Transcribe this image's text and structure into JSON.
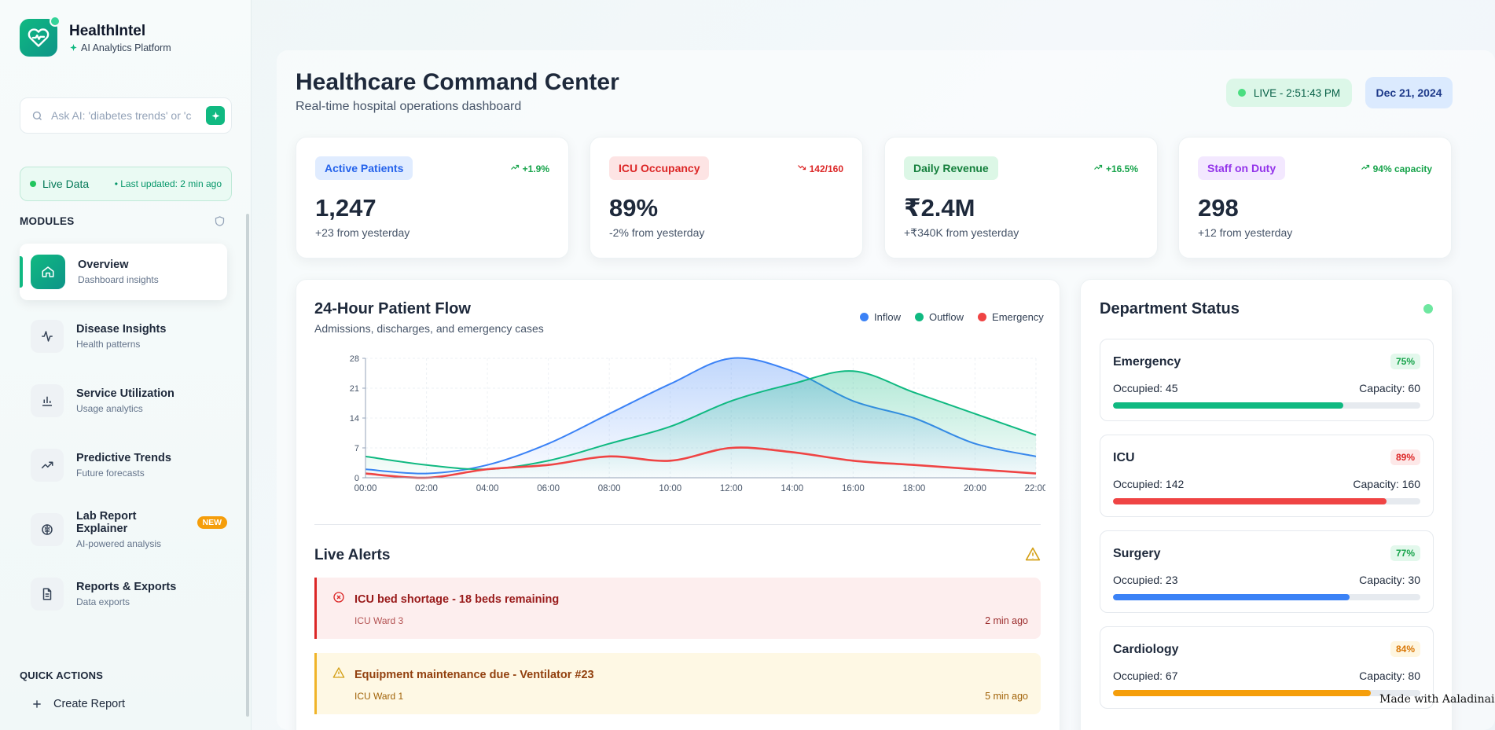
{
  "sidebar": {
    "brand_title": "HealthIntel",
    "brand_sub": "AI Analytics Platform",
    "search_placeholder": "Ask AI: 'diabetes trends' or 'c",
    "live_label": "Live Data",
    "live_updated": "• Last updated: 2 min ago",
    "modules_heading": "MODULES",
    "items": [
      {
        "label": "Overview",
        "sub": "Dashboard insights",
        "icon": "home-icon"
      },
      {
        "label": "Disease Insights",
        "sub": "Health patterns",
        "icon": "activity-icon"
      },
      {
        "label": "Service Utilization",
        "sub": "Usage analytics",
        "icon": "bar-chart-icon"
      },
      {
        "label": "Predictive Trends",
        "sub": "Future forecasts",
        "icon": "trending-up-icon"
      },
      {
        "label": "Lab Report Explainer",
        "sub": "AI-powered analysis",
        "icon": "brain-icon",
        "badge": "NEW"
      },
      {
        "label": "Reports & Exports",
        "sub": "Data exports",
        "icon": "file-icon"
      }
    ],
    "quick_actions_heading": "QUICK ACTIONS",
    "quick_actions": [
      {
        "label": "Create Report"
      }
    ]
  },
  "header": {
    "title": "Healthcare Command Center",
    "subtitle": "Real-time hospital operations dashboard",
    "live_status": "LIVE - 2:51:43 PM",
    "date": "Dec 21, 2024"
  },
  "kpis": [
    {
      "label": "Active Patients",
      "trend": "+1.9%",
      "value": "1,247",
      "change": "+23 from yesterday",
      "color": "#2563eb",
      "bg": "#e0ecff",
      "trend_color": "#16a34a",
      "trend_dir": "up"
    },
    {
      "label": "ICU Occupancy",
      "trend": "142/160",
      "value": "89%",
      "change": "-2% from yesterday",
      "color": "#dc2626",
      "bg": "#fde4e4",
      "trend_color": "#dc2626",
      "trend_dir": "down"
    },
    {
      "label": "Daily Revenue",
      "trend": "+16.5%",
      "value": "₹2.4M",
      "change": "+₹340K from yesterday",
      "color": "#15803d",
      "bg": "#dcf7e6",
      "trend_color": "#16a34a",
      "trend_dir": "up"
    },
    {
      "label": "Staff on Duty",
      "trend": "94% capacity",
      "value": "298",
      "change": "+12 from yesterday",
      "color": "#9333ea",
      "bg": "#f3e8ff",
      "trend_color": "#16a34a",
      "trend_dir": "up"
    }
  ],
  "chart_data": {
    "type": "area",
    "title": "24-Hour Patient Flow",
    "subtitle": "Admissions, discharges, and emergency cases",
    "x": [
      "00:00",
      "02:00",
      "04:00",
      "06:00",
      "08:00",
      "10:00",
      "12:00",
      "14:00",
      "16:00",
      "18:00",
      "20:00",
      "22:00"
    ],
    "ylim": [
      0,
      28
    ],
    "yticks": [
      0,
      7,
      14,
      21,
      28
    ],
    "series": [
      {
        "name": "Inflow",
        "color": "#3b82f6",
        "values": [
          2,
          1,
          3,
          8,
          15,
          22,
          28,
          25,
          18,
          14,
          8,
          5
        ]
      },
      {
        "name": "Outflow",
        "color": "#10b981",
        "values": [
          5,
          3,
          2,
          4,
          8,
          12,
          18,
          22,
          25,
          20,
          15,
          10
        ]
      },
      {
        "name": "Emergency",
        "color": "#ef4444",
        "values": [
          1,
          0,
          2,
          3,
          5,
          4,
          7,
          6,
          4,
          3,
          2,
          1
        ]
      }
    ],
    "legend_position": "top-right",
    "grid": true
  },
  "alerts": {
    "title": "Live Alerts",
    "items": [
      {
        "message": "ICU bed shortage - 18 beds remaining",
        "location": "ICU Ward 3",
        "time": "2 min ago",
        "severity": "critical"
      },
      {
        "message": "Equipment maintenance due - Ventilator #23",
        "location": "ICU Ward 1",
        "time": "5 min ago",
        "severity": "warning"
      }
    ]
  },
  "departments": {
    "title": "Department Status",
    "items": [
      {
        "name": "Emergency",
        "percent": "75%",
        "percent_value": 75,
        "occupied": "Occupied: 45",
        "capacity": "Capacity: 60",
        "bar_color": "#10b981",
        "pct_color": "#16a34a",
        "pct_bg": "#e3f8ec"
      },
      {
        "name": "ICU",
        "percent": "89%",
        "percent_value": 89,
        "occupied": "Occupied: 142",
        "capacity": "Capacity: 160",
        "bar_color": "#ef4444",
        "pct_color": "#dc2626",
        "pct_bg": "#fde8e8"
      },
      {
        "name": "Surgery",
        "percent": "77%",
        "percent_value": 77,
        "occupied": "Occupied: 23",
        "capacity": "Capacity: 30",
        "bar_color": "#3b82f6",
        "pct_color": "#16a34a",
        "pct_bg": "#e3f8ec"
      },
      {
        "name": "Cardiology",
        "percent": "84%",
        "percent_value": 84,
        "occupied": "Occupied: 67",
        "capacity": "Capacity: 80",
        "bar_color": "#f59e0b",
        "pct_color": "#d97706",
        "pct_bg": "#fef6e0"
      }
    ]
  },
  "watermark": "Made with Aaladinai"
}
